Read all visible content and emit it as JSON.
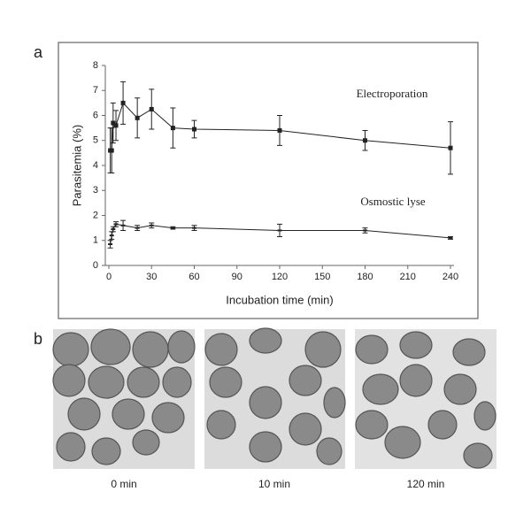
{
  "chart_data": {
    "type": "line",
    "xlabel": "Incubation time (min)",
    "ylabel": "Parasitemia (%)",
    "xlim": [
      0,
      240
    ],
    "xticks": [
      0,
      30,
      60,
      90,
      120,
      150,
      180,
      210,
      240
    ],
    "ylim": [
      0,
      8
    ],
    "yticks": [
      0,
      1,
      2,
      3,
      4,
      5,
      6,
      7,
      8
    ],
    "series": [
      {
        "name": "Electroporation",
        "color": "#222222",
        "marker": "square",
        "x": [
          1,
          2,
          3,
          5,
          10,
          20,
          30,
          45,
          60,
          120,
          180,
          240
        ],
        "values": [
          4.6,
          4.6,
          5.7,
          5.6,
          6.5,
          5.9,
          6.25,
          5.5,
          5.45,
          5.4,
          5.0,
          4.7
        ],
        "errors": [
          0.9,
          0.9,
          0.8,
          0.6,
          0.85,
          0.8,
          0.8,
          0.8,
          0.35,
          0.6,
          0.4,
          1.05
        ]
      },
      {
        "name": "Osmostic lyse",
        "color": "#222222",
        "marker": "dash",
        "x": [
          1,
          2,
          3,
          5,
          10,
          20,
          30,
          45,
          60,
          120,
          180,
          240
        ],
        "values": [
          0.85,
          1.2,
          1.45,
          1.65,
          1.6,
          1.5,
          1.6,
          1.5,
          1.5,
          1.4,
          1.4,
          1.1
        ],
        "errors": [
          0.15,
          0.15,
          0.1,
          0.1,
          0.2,
          0.1,
          0.1,
          0.05,
          0.1,
          0.25,
          0.1,
          0.05
        ]
      }
    ]
  },
  "panels": [
    "a",
    "b"
  ],
  "images": [
    {
      "caption": "0 min"
    },
    {
      "caption": "10 min"
    },
    {
      "caption": "120 min"
    }
  ]
}
